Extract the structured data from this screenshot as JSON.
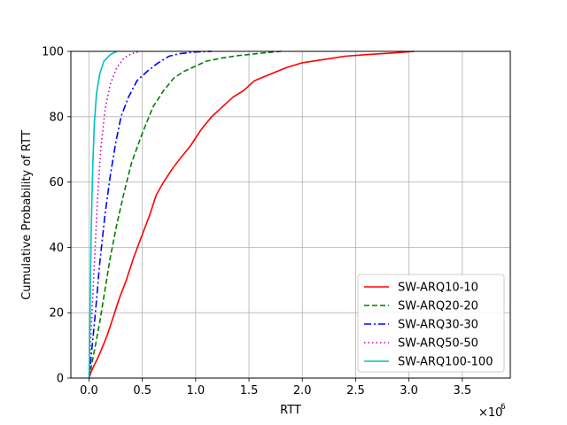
{
  "chart_data": {
    "type": "line",
    "title": "",
    "xlabel": "RTT",
    "ylabel": "Cumulative Probability of RTT",
    "x_scale_label": "×10",
    "x_scale_exponent": "6",
    "xlim": [
      -0.17,
      3.95
    ],
    "ylim": [
      0,
      100
    ],
    "x_ticks": [
      0.0,
      0.5,
      1.0,
      1.5,
      2.0,
      2.5,
      3.0,
      3.5
    ],
    "x_tick_labels": [
      "0.0",
      "0.5",
      "1.0",
      "1.5",
      "2.0",
      "2.5",
      "3.0",
      "3.5"
    ],
    "y_ticks": [
      0,
      20,
      40,
      60,
      80,
      100
    ],
    "y_tick_labels": [
      "0",
      "20",
      "40",
      "60",
      "80",
      "100"
    ],
    "grid": true,
    "legend_position": "lower-right",
    "series": [
      {
        "name": "SW-ARQ10-10",
        "color": "#ff0000",
        "dash": "solid",
        "points": [
          [
            0.0,
            0
          ],
          [
            0.02,
            2
          ],
          [
            0.05,
            4
          ],
          [
            0.08,
            6
          ],
          [
            0.12,
            9
          ],
          [
            0.17,
            13
          ],
          [
            0.22,
            18
          ],
          [
            0.28,
            24
          ],
          [
            0.35,
            30
          ],
          [
            0.42,
            37
          ],
          [
            0.5,
            44
          ],
          [
            0.57,
            50
          ],
          [
            0.63,
            56
          ],
          [
            0.7,
            60
          ],
          [
            0.78,
            64
          ],
          [
            0.85,
            67
          ],
          [
            0.95,
            71
          ],
          [
            1.05,
            76
          ],
          [
            1.15,
            80
          ],
          [
            1.25,
            83
          ],
          [
            1.35,
            86
          ],
          [
            1.45,
            88
          ],
          [
            1.55,
            91
          ],
          [
            1.7,
            93
          ],
          [
            1.85,
            95
          ],
          [
            2.0,
            96.5
          ],
          [
            2.2,
            97.5
          ],
          [
            2.4,
            98.5
          ],
          [
            2.6,
            99
          ],
          [
            2.85,
            99.5
          ],
          [
            3.05,
            100
          ]
        ]
      },
      {
        "name": "SW-ARQ20-20",
        "color": "#008000",
        "dash": "dashed",
        "points": [
          [
            0.0,
            0
          ],
          [
            0.03,
            5
          ],
          [
            0.06,
            10
          ],
          [
            0.1,
            17
          ],
          [
            0.15,
            27
          ],
          [
            0.2,
            37
          ],
          [
            0.26,
            47
          ],
          [
            0.33,
            57
          ],
          [
            0.4,
            66
          ],
          [
            0.5,
            75
          ],
          [
            0.6,
            83
          ],
          [
            0.7,
            88
          ],
          [
            0.8,
            92
          ],
          [
            0.9,
            94
          ],
          [
            1.0,
            95.5
          ],
          [
            1.1,
            97
          ],
          [
            1.25,
            98
          ],
          [
            1.4,
            98.7
          ],
          [
            1.6,
            99.4
          ],
          [
            1.8,
            100
          ]
        ]
      },
      {
        "name": "SW-ARQ30-30",
        "color": "#0000ff",
        "dash": "dashdot",
        "points": [
          [
            0.0,
            0
          ],
          [
            0.03,
            10
          ],
          [
            0.06,
            20
          ],
          [
            0.1,
            35
          ],
          [
            0.15,
            50
          ],
          [
            0.2,
            62
          ],
          [
            0.25,
            72
          ],
          [
            0.3,
            80
          ],
          [
            0.37,
            86
          ],
          [
            0.45,
            91
          ],
          [
            0.55,
            94
          ],
          [
            0.65,
            96.5
          ],
          [
            0.75,
            98.5
          ],
          [
            0.85,
            99.3
          ],
          [
            1.0,
            99.8
          ],
          [
            1.15,
            100
          ]
        ]
      },
      {
        "name": "SW-ARQ50-50",
        "color": "#bf00bf",
        "dash": "dotted",
        "points": [
          [
            0.0,
            0
          ],
          [
            0.02,
            15
          ],
          [
            0.05,
            35
          ],
          [
            0.08,
            55
          ],
          [
            0.11,
            70
          ],
          [
            0.15,
            82
          ],
          [
            0.2,
            90
          ],
          [
            0.26,
            95
          ],
          [
            0.33,
            98
          ],
          [
            0.4,
            99.3
          ],
          [
            0.48,
            100
          ]
        ]
      },
      {
        "name": "SW-ARQ100-100",
        "color": "#00bfbf",
        "dash": "solid",
        "points": [
          [
            0.0,
            0
          ],
          [
            0.01,
            20
          ],
          [
            0.02,
            45
          ],
          [
            0.035,
            65
          ],
          [
            0.05,
            78
          ],
          [
            0.07,
            87
          ],
          [
            0.1,
            93
          ],
          [
            0.14,
            97
          ],
          [
            0.2,
            99
          ],
          [
            0.26,
            100
          ]
        ]
      }
    ]
  }
}
